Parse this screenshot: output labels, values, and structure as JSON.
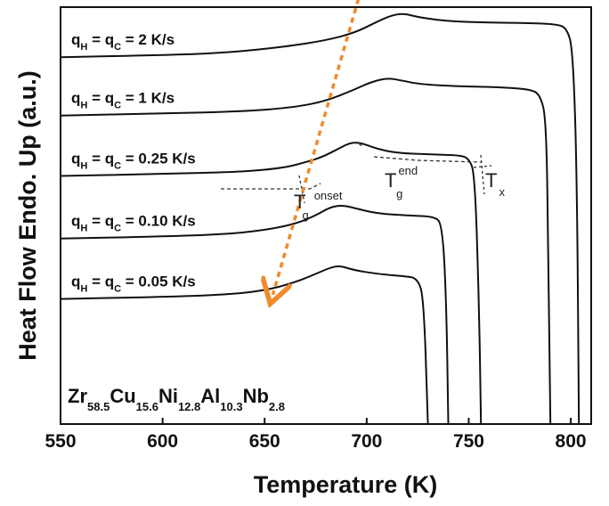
{
  "chart_data": {
    "type": "line",
    "title": "",
    "xlabel": "Temperature (K)",
    "ylabel": "Heat Flow Endo. Up (a.u.)",
    "xlim": [
      550,
      810
    ],
    "xticks": [
      550,
      600,
      650,
      700,
      750,
      800
    ],
    "y_unit": "a.u.",
    "composition": {
      "parts": [
        {
          "el": "Zr",
          "sub": "58.5"
        },
        {
          "el": "Cu",
          "sub": "15.6"
        },
        {
          "el": "Ni",
          "sub": "12.8"
        },
        {
          "el": "Al",
          "sub": "10.3"
        },
        {
          "el": "Nb",
          "sub": "2.8"
        }
      ]
    },
    "series": [
      {
        "name": "qH = qC = 2 K/s",
        "label": {
          "main_q": "q",
          "sub_h": "H",
          "eq": " = ",
          "sub_c": "C",
          "rate": " = 2 K/s"
        },
        "points": [
          [
            550,
            0.88
          ],
          [
            600,
            0.885
          ],
          [
            630,
            0.89
          ],
          [
            660,
            0.905
          ],
          [
            680,
            0.92
          ],
          [
            695,
            0.94
          ],
          [
            705,
            0.965
          ],
          [
            712,
            0.98
          ],
          [
            718,
            0.985
          ],
          [
            726,
            0.975
          ],
          [
            740,
            0.966
          ],
          [
            760,
            0.963
          ],
          [
            780,
            0.962
          ],
          [
            793,
            0.959
          ],
          [
            798,
            0.95
          ],
          [
            801,
            0.9
          ],
          [
            803,
            0.6
          ],
          [
            804,
            0.0
          ]
        ]
      },
      {
        "name": "qH = qC = 1 K/s",
        "label": {
          "main_q": "q",
          "sub_h": "H",
          "eq": " = ",
          "sub_c": "C",
          "rate": " = 1 K/s"
        },
        "points": [
          [
            550,
            0.74
          ],
          [
            600,
            0.745
          ],
          [
            640,
            0.75
          ],
          [
            665,
            0.76
          ],
          [
            680,
            0.775
          ],
          [
            693,
            0.8
          ],
          [
            702,
            0.82
          ],
          [
            710,
            0.83
          ],
          [
            716,
            0.825
          ],
          [
            726,
            0.815
          ],
          [
            745,
            0.81
          ],
          [
            765,
            0.808
          ],
          [
            780,
            0.803
          ],
          [
            785,
            0.79
          ],
          [
            788,
            0.73
          ],
          [
            789,
            0.4
          ],
          [
            790,
            0.0
          ]
        ]
      },
      {
        "name": "qH = qC = 0.25 K/s",
        "label": {
          "main_q": "q",
          "sub_h": "H",
          "eq": " = ",
          "sub_c": "C",
          "rate": " = 0.25 K/s"
        },
        "points": [
          [
            550,
            0.595
          ],
          [
            600,
            0.6
          ],
          [
            640,
            0.605
          ],
          [
            660,
            0.615
          ],
          [
            670,
            0.628
          ],
          [
            678,
            0.64
          ],
          [
            686,
            0.66
          ],
          [
            692,
            0.675
          ],
          [
            697,
            0.675
          ],
          [
            705,
            0.66
          ],
          [
            715,
            0.65
          ],
          [
            730,
            0.647
          ],
          [
            745,
            0.645
          ],
          [
            750,
            0.638
          ],
          [
            753,
            0.6
          ],
          [
            755,
            0.3
          ],
          [
            756,
            0.0
          ]
        ]
      },
      {
        "name": "qH = qC = 0.10 K/s",
        "label": {
          "main_q": "q",
          "sub_h": "H",
          "eq": " = ",
          "sub_c": "C",
          "rate": " = 0.10 K/s"
        },
        "points": [
          [
            550,
            0.445
          ],
          [
            600,
            0.45
          ],
          [
            630,
            0.455
          ],
          [
            650,
            0.465
          ],
          [
            665,
            0.48
          ],
          [
            675,
            0.5
          ],
          [
            682,
            0.52
          ],
          [
            688,
            0.525
          ],
          [
            694,
            0.518
          ],
          [
            705,
            0.505
          ],
          [
            720,
            0.5
          ],
          [
            733,
            0.498
          ],
          [
            737,
            0.48
          ],
          [
            739,
            0.3
          ],
          [
            740,
            0.0
          ]
        ]
      },
      {
        "name": "qH = qC = 0.05 K/s",
        "label": {
          "main_q": "q",
          "sub_h": "H",
          "eq": " = ",
          "sub_c": "C",
          "rate": " = 0.05 K/s"
        },
        "points": [
          [
            550,
            0.3
          ],
          [
            600,
            0.305
          ],
          [
            630,
            0.31
          ],
          [
            650,
            0.32
          ],
          [
            665,
            0.34
          ],
          [
            675,
            0.36
          ],
          [
            682,
            0.375
          ],
          [
            687,
            0.38
          ],
          [
            693,
            0.37
          ],
          [
            705,
            0.36
          ],
          [
            718,
            0.355
          ],
          [
            725,
            0.35
          ],
          [
            728,
            0.3
          ],
          [
            730,
            0.0
          ]
        ]
      }
    ],
    "annotations": {
      "tg_onset": {
        "main": "T",
        "sub": "g",
        "sup": "onset"
      },
      "tg_end": {
        "main": "T",
        "sup": "end",
        "sub": "g"
      },
      "tx": {
        "main": "T",
        "sub": "x"
      },
      "trend_arrow": {
        "from": [
          696,
          1.02
        ],
        "to": [
          654,
          0.31
        ],
        "color": "#f08a2c"
      }
    },
    "line_color": "#111111"
  }
}
